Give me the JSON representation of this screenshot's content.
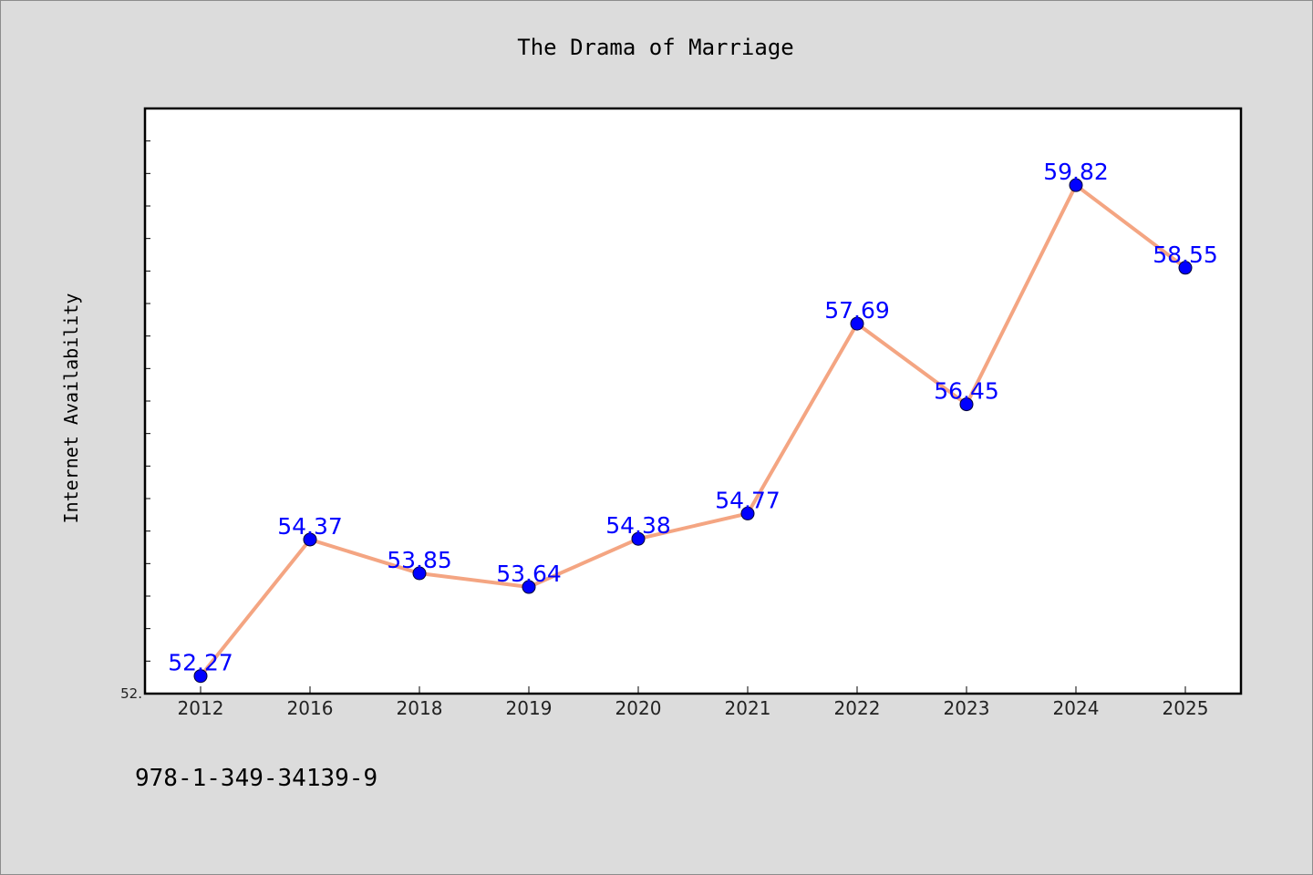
{
  "chart_data": {
    "type": "line",
    "title": "The Drama of Marriage",
    "xlabel": "",
    "ylabel": "Internet Availability",
    "categories": [
      "2012",
      "2016",
      "2018",
      "2019",
      "2020",
      "2021",
      "2022",
      "2023",
      "2024",
      "2025"
    ],
    "series": [
      {
        "values": [
          52.27,
          54.37,
          53.85,
          53.64,
          54.38,
          54.77,
          57.69,
          56.45,
          59.82,
          58.55
        ],
        "labels": [
          "52.27",
          "54.37",
          "53.85",
          "53.64",
          "54.38",
          "54.77",
          "57.69",
          "56.45",
          "59.82",
          "58.55"
        ]
      }
    ],
    "ylim": [
      52.0,
      61.0
    ],
    "y_tick_labels": [
      "52."
    ],
    "grid": false,
    "colors": {
      "line": "#f4a582",
      "marker": "#0000ff",
      "data_label": "#0000ff",
      "background": "#dcdcdc",
      "plot_area": "#ffffff"
    }
  },
  "footer": {
    "isbn": "978-1-349-34139-9"
  }
}
